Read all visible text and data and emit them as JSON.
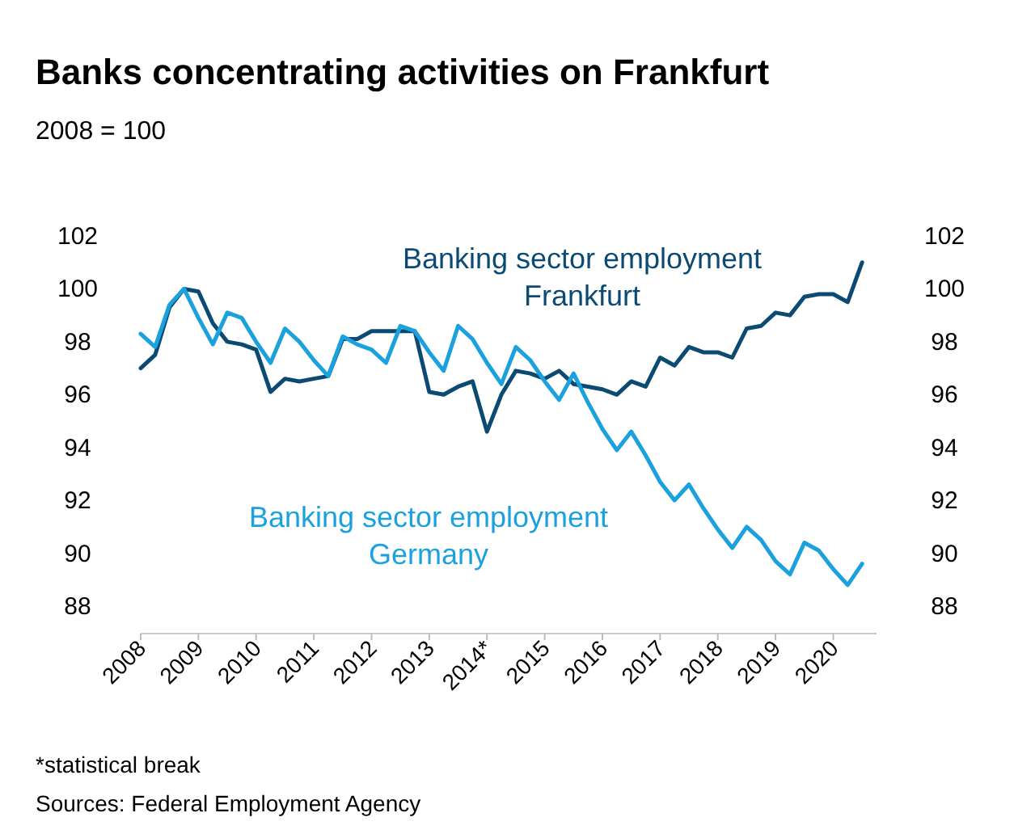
{
  "chart_data": {
    "type": "line",
    "title": "Banks concentrating activities on Frankfurt",
    "subtitle": "2008 = 100",
    "x": [
      2008,
      2008.25,
      2008.5,
      2008.75,
      2009,
      2009.25,
      2009.5,
      2009.75,
      2010,
      2010.25,
      2010.5,
      2010.75,
      2011,
      2011.25,
      2011.5,
      2011.75,
      2012,
      2012.25,
      2012.5,
      2012.75,
      2013,
      2013.25,
      2013.5,
      2013.75,
      2014,
      2014.25,
      2014.5,
      2014.75,
      2015,
      2015.25,
      2015.5,
      2015.75,
      2016,
      2016.25,
      2016.5,
      2016.75,
      2017,
      2017.25,
      2017.5,
      2017.75,
      2018,
      2018.25,
      2018.5,
      2018.75,
      2019,
      2019.25,
      2019.5,
      2019.75,
      2020,
      2020.25,
      2020.5
    ],
    "series": [
      {
        "name": "Banking sector employment Frankfurt",
        "color": "#0b4a72",
        "values": [
          97.0,
          97.5,
          99.3,
          100.0,
          99.9,
          98.7,
          98.0,
          97.9,
          97.7,
          96.1,
          96.6,
          96.5,
          96.6,
          96.7,
          98.1,
          98.1,
          98.4,
          98.4,
          98.4,
          98.4,
          96.1,
          96.0,
          96.3,
          96.5,
          94.6,
          96.0,
          96.9,
          96.8,
          96.6,
          96.9,
          96.4,
          96.3,
          96.2,
          96.0,
          96.5,
          96.3,
          97.4,
          97.1,
          97.8,
          97.6,
          97.6,
          97.4,
          98.5,
          98.6,
          99.1,
          99.0,
          99.7,
          99.8,
          99.8,
          99.5,
          101.0
        ]
      },
      {
        "name": "Banking sector employment Germany",
        "color": "#1ba1de",
        "values": [
          98.3,
          97.8,
          99.4,
          100.0,
          98.9,
          97.9,
          99.1,
          98.9,
          98.0,
          97.2,
          98.5,
          98.0,
          97.3,
          96.7,
          98.2,
          97.9,
          97.7,
          97.2,
          98.6,
          98.4,
          97.6,
          96.9,
          98.6,
          98.1,
          97.2,
          96.4,
          97.8,
          97.3,
          96.5,
          95.8,
          96.8,
          95.7,
          94.7,
          93.9,
          94.6,
          93.7,
          92.7,
          92.0,
          92.6,
          91.7,
          90.9,
          90.2,
          91.0,
          90.5,
          89.7,
          89.2,
          90.4,
          90.1,
          89.4,
          88.8,
          89.6
        ]
      }
    ],
    "xlim": [
      2008,
      2020.75
    ],
    "xticks": [
      2008,
      2009,
      2010,
      2011,
      2012,
      2013,
      {
        "value": 2014,
        "label": "2014*"
      },
      2015,
      2016,
      2017,
      2018,
      2019,
      2020
    ],
    "ylim": [
      88,
      102
    ],
    "yticks": [
      88,
      90,
      92,
      94,
      96,
      98,
      100,
      102
    ],
    "y2lim": [
      88,
      102
    ],
    "y2ticks": [
      88,
      90,
      92,
      94,
      96,
      98,
      100,
      102
    ],
    "grid": false,
    "line_style": "solid",
    "marker": "none",
    "annotations": [
      "*statistical break",
      "Sources: Federal Employment Agency"
    ]
  }
}
